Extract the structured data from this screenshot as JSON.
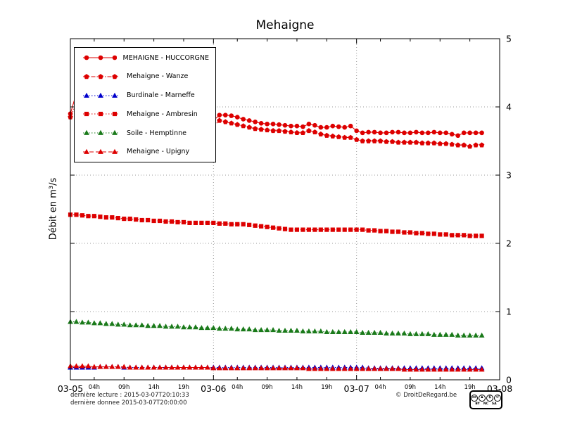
{
  "title": "Mehaigne",
  "y_axis_label": "Débit en m³/s",
  "footer": {
    "last_read": "dernière lecture : 2015-03-07T20:10:33",
    "last_data": "dernière donnee  2015-03-07T20:00:00",
    "copyright": "© DroitDeRegard.be"
  },
  "license_badge": {
    "cc_label": "cc",
    "icons": [
      {
        "name": "attribution-person",
        "glyph": "♟"
      },
      {
        "name": "non-commercial-dollar",
        "glyph": "$"
      },
      {
        "name": "share-alike-arrows",
        "glyph": "↺"
      }
    ],
    "labels": [
      "BY",
      "NC",
      "SA"
    ]
  },
  "chart_data": {
    "type": "line",
    "title": "Mehaigne",
    "xlabel": "",
    "ylabel": "Débit en m³/s",
    "x_unit": "hours since 2015-03-05 00:00",
    "x_range": [
      0,
      72
    ],
    "ylim": [
      0,
      5
    ],
    "y_ticks": [
      0,
      1,
      2,
      3,
      4,
      5
    ],
    "x_major_ticks": [
      {
        "hour": 0,
        "label": "03-05"
      },
      {
        "hour": 24,
        "label": "03-06"
      },
      {
        "hour": 48,
        "label": "03-07"
      },
      {
        "hour": 72,
        "label": "03-08"
      }
    ],
    "x_minor_ticks": [
      {
        "hour": 4,
        "label": "04h"
      },
      {
        "hour": 9,
        "label": "09h"
      },
      {
        "hour": 14,
        "label": "14h"
      },
      {
        "hour": 19,
        "label": "19h"
      },
      {
        "hour": 28,
        "label": "04h"
      },
      {
        "hour": 33,
        "label": "09h"
      },
      {
        "hour": 38,
        "label": "14h"
      },
      {
        "hour": 43,
        "label": "19h"
      },
      {
        "hour": 52,
        "label": "04h"
      },
      {
        "hour": 57,
        "label": "09h"
      },
      {
        "hour": 62,
        "label": "14h"
      },
      {
        "hour": 67,
        "label": "19h"
      }
    ],
    "grid": {
      "h_lines": [
        1,
        2,
        3,
        4
      ],
      "v_lines": [
        24,
        48
      ]
    },
    "legend_position": "top-left",
    "series": [
      {
        "name": "MEHAIGNE - HUCCORGNE",
        "color": "#dd0000",
        "marker": "circle",
        "line": "solid",
        "start_hour": 0,
        "step": 1,
        "values": [
          3.9,
          4.2,
          4.12,
          4.06,
          4.01,
          3.97,
          3.94,
          3.92,
          3.9,
          3.89,
          3.88,
          3.87,
          3.86,
          3.85,
          3.84,
          3.84,
          3.83,
          3.83,
          3.82,
          3.82,
          3.81,
          3.81,
          3.8,
          3.8,
          3.8,
          3.88,
          3.88,
          3.87,
          3.85,
          3.82,
          3.8,
          3.78,
          3.76,
          3.75,
          3.75,
          3.74,
          3.73,
          3.72,
          3.72,
          3.71,
          3.75,
          3.73,
          3.7,
          3.7,
          3.72,
          3.71,
          3.7,
          3.72,
          3.65,
          3.62,
          3.63,
          3.63,
          3.62,
          3.62,
          3.63,
          3.63,
          3.62,
          3.62,
          3.63,
          3.62,
          3.62,
          3.63,
          3.62,
          3.62,
          3.6,
          3.58,
          3.62,
          3.62,
          3.62,
          3.62
        ]
      },
      {
        "name": "Mehaigne - Wanze",
        "color": "#dd0000",
        "marker": "pentagon",
        "line": "dashdot",
        "start_hour": 0,
        "step": 1,
        "values": [
          3.85,
          4.05,
          4.0,
          3.96,
          3.93,
          3.9,
          3.88,
          3.86,
          3.85,
          3.84,
          3.83,
          3.82,
          3.81,
          3.8,
          3.79,
          3.78,
          3.78,
          3.77,
          3.76,
          3.76,
          3.75,
          3.74,
          3.73,
          3.72,
          3.72,
          3.8,
          3.78,
          3.76,
          3.74,
          3.72,
          3.7,
          3.68,
          3.67,
          3.66,
          3.65,
          3.65,
          3.64,
          3.63,
          3.62,
          3.62,
          3.65,
          3.63,
          3.6,
          3.58,
          3.57,
          3.56,
          3.55,
          3.55,
          3.52,
          3.5,
          3.5,
          3.5,
          3.5,
          3.49,
          3.49,
          3.48,
          3.48,
          3.48,
          3.48,
          3.47,
          3.47,
          3.47,
          3.46,
          3.46,
          3.45,
          3.44,
          3.44,
          3.42,
          3.44,
          3.44
        ]
      },
      {
        "name": "Burdinale - Marneffe",
        "color": "#0000cc",
        "marker": "triangle",
        "line": "dotted",
        "start_hour": 0,
        "step": 1,
        "values": [
          0.18,
          0.18,
          0.18,
          0.18,
          0.18,
          0.19,
          0.19,
          0.19,
          0.19,
          0.18,
          0.18,
          0.18,
          0.18,
          0.18,
          0.18,
          0.18,
          0.18,
          0.18,
          0.18,
          0.18,
          0.18,
          0.18,
          0.18,
          0.18,
          0.18,
          0.18,
          0.18,
          0.18,
          0.18,
          0.18,
          0.18,
          0.18,
          0.18,
          0.18,
          0.18,
          0.18,
          0.18,
          0.18,
          0.18,
          0.18,
          0.18,
          0.18,
          0.18,
          0.18,
          0.18,
          0.18,
          0.18,
          0.18,
          0.18,
          0.18,
          0.17,
          0.17,
          0.17,
          0.17,
          0.17,
          0.17,
          0.17,
          0.17,
          0.17,
          0.17,
          0.17,
          0.17,
          0.17,
          0.17,
          0.17,
          0.17,
          0.17,
          0.17,
          0.17,
          0.17
        ]
      },
      {
        "name": "Mehaigne - Ambresin",
        "color": "#dd0000",
        "marker": "square",
        "line": "dotted",
        "start_hour": 0,
        "step": 1,
        "values": [
          2.42,
          2.42,
          2.41,
          2.4,
          2.4,
          2.39,
          2.38,
          2.38,
          2.37,
          2.36,
          2.36,
          2.35,
          2.34,
          2.34,
          2.33,
          2.33,
          2.32,
          2.32,
          2.31,
          2.31,
          2.3,
          2.3,
          2.3,
          2.3,
          2.3,
          2.29,
          2.29,
          2.28,
          2.28,
          2.28,
          2.27,
          2.26,
          2.25,
          2.24,
          2.23,
          2.22,
          2.21,
          2.2,
          2.2,
          2.2,
          2.2,
          2.2,
          2.2,
          2.2,
          2.2,
          2.2,
          2.2,
          2.2,
          2.2,
          2.2,
          2.19,
          2.19,
          2.18,
          2.18,
          2.17,
          2.17,
          2.16,
          2.16,
          2.15,
          2.15,
          2.14,
          2.14,
          2.13,
          2.13,
          2.12,
          2.12,
          2.12,
          2.11,
          2.11,
          2.11
        ]
      },
      {
        "name": "Soile - Hemptinne",
        "color": "#1a7a1a",
        "marker": "triangle",
        "line": "dotted",
        "start_hour": 0,
        "step": 1,
        "values": [
          0.85,
          0.85,
          0.84,
          0.84,
          0.83,
          0.83,
          0.82,
          0.82,
          0.81,
          0.81,
          0.8,
          0.8,
          0.8,
          0.79,
          0.79,
          0.79,
          0.78,
          0.78,
          0.78,
          0.77,
          0.77,
          0.77,
          0.76,
          0.76,
          0.76,
          0.75,
          0.75,
          0.75,
          0.74,
          0.74,
          0.74,
          0.73,
          0.73,
          0.73,
          0.73,
          0.72,
          0.72,
          0.72,
          0.72,
          0.71,
          0.71,
          0.71,
          0.71,
          0.7,
          0.7,
          0.7,
          0.7,
          0.7,
          0.7,
          0.69,
          0.69,
          0.69,
          0.69,
          0.68,
          0.68,
          0.68,
          0.68,
          0.67,
          0.67,
          0.67,
          0.67,
          0.66,
          0.66,
          0.66,
          0.66,
          0.65,
          0.65,
          0.65,
          0.65,
          0.65
        ]
      },
      {
        "name": "Mehaigne - Upigny",
        "color": "#dd0000",
        "marker": "triangle",
        "line": "dashed",
        "start_hour": 0,
        "step": 1,
        "values": [
          0.2,
          0.2,
          0.2,
          0.2,
          0.19,
          0.19,
          0.19,
          0.19,
          0.19,
          0.19,
          0.18,
          0.18,
          0.18,
          0.18,
          0.18,
          0.18,
          0.18,
          0.18,
          0.18,
          0.18,
          0.18,
          0.18,
          0.18,
          0.18,
          0.17,
          0.17,
          0.17,
          0.17,
          0.17,
          0.17,
          0.17,
          0.17,
          0.17,
          0.17,
          0.17,
          0.17,
          0.17,
          0.17,
          0.17,
          0.17,
          0.16,
          0.16,
          0.16,
          0.16,
          0.16,
          0.16,
          0.16,
          0.16,
          0.16,
          0.16,
          0.16,
          0.16,
          0.16,
          0.16,
          0.16,
          0.16,
          0.15,
          0.15,
          0.15,
          0.15,
          0.15,
          0.15,
          0.15,
          0.15,
          0.15,
          0.15,
          0.15,
          0.15,
          0.15,
          0.15
        ]
      }
    ]
  }
}
